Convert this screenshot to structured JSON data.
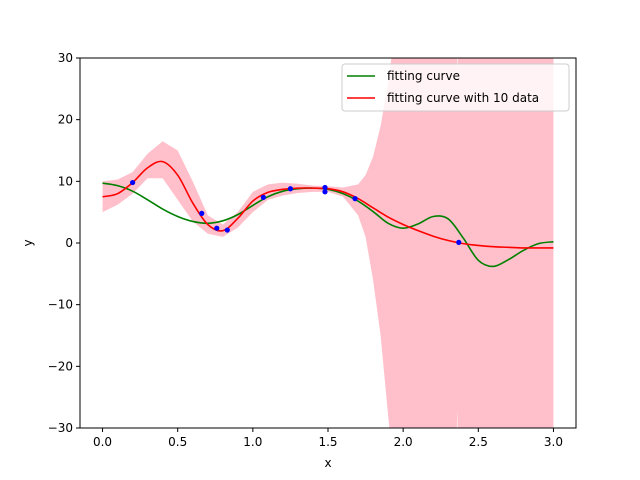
{
  "chart_data": {
    "type": "line",
    "xlabel": "x",
    "ylabel": "y",
    "xlim": [
      -0.15,
      3.15
    ],
    "ylim": [
      -30,
      30
    ],
    "xticks": [
      0.0,
      0.5,
      1.0,
      1.5,
      2.0,
      2.5,
      3.0
    ],
    "xtick_labels": [
      "0.0",
      "0.5",
      "1.0",
      "1.5",
      "2.0",
      "2.5",
      "3.0"
    ],
    "yticks": [
      -30,
      -20,
      -10,
      0,
      10,
      20,
      30
    ],
    "ytick_labels": [
      "−30",
      "−20",
      "−10",
      "0",
      "10",
      "20",
      "30"
    ],
    "grid": false,
    "legend_position": "top-right",
    "colors": {
      "fitting_curve": "#008000",
      "fitting_curve_10": "#ff0000",
      "band": "#ffc0cb",
      "points": "#0000ff"
    },
    "series": [
      {
        "name": "fitting curve",
        "x": [
          0.0,
          0.1,
          0.2,
          0.3,
          0.4,
          0.5,
          0.6,
          0.7,
          0.8,
          0.9,
          1.0,
          1.1,
          1.2,
          1.3,
          1.4,
          1.5,
          1.6,
          1.7,
          1.8,
          1.9,
          2.0,
          2.1,
          2.2,
          2.3,
          2.4,
          2.5,
          2.6,
          2.7,
          2.8,
          2.9,
          3.0
        ],
        "y": [
          9.7,
          9.3,
          8.4,
          7.0,
          5.5,
          4.3,
          3.5,
          3.2,
          3.6,
          4.6,
          6.1,
          7.5,
          8.4,
          8.8,
          8.9,
          8.7,
          8.0,
          6.8,
          5.1,
          3.2,
          2.4,
          3.1,
          4.3,
          3.9,
          0.8,
          -2.8,
          -3.8,
          -2.7,
          -1.2,
          -0.1,
          0.2
        ]
      },
      {
        "name": "fitting curve with 10 data",
        "x": [
          0.0,
          0.1,
          0.2,
          0.3,
          0.4,
          0.5,
          0.6,
          0.7,
          0.8,
          0.9,
          1.0,
          1.1,
          1.2,
          1.3,
          1.4,
          1.5,
          1.6,
          1.7,
          1.8,
          1.9,
          2.0,
          2.1,
          2.2,
          2.3,
          2.4,
          2.5,
          2.6,
          2.7,
          2.8,
          2.9,
          3.0
        ],
        "y": [
          7.5,
          8.0,
          9.8,
          12.2,
          13.2,
          11.0,
          6.5,
          3.0,
          2.0,
          4.0,
          6.8,
          8.2,
          8.7,
          8.9,
          8.9,
          8.8,
          8.3,
          7.2,
          5.7,
          4.2,
          3.0,
          2.0,
          1.1,
          0.4,
          -0.1,
          -0.4,
          -0.6,
          -0.7,
          -0.8,
          -0.8,
          -0.8
        ]
      }
    ],
    "band": {
      "x": [
        0.0,
        0.1,
        0.2,
        0.3,
        0.4,
        0.5,
        0.6,
        0.7,
        0.8,
        0.9,
        1.0,
        1.1,
        1.2,
        1.3,
        1.4,
        1.5,
        1.6,
        1.7,
        1.75,
        1.8,
        1.85,
        1.9,
        1.95,
        2.0,
        2.05,
        2.1,
        2.2,
        2.3,
        2.35,
        2.36,
        2.37,
        2.38,
        2.4,
        2.5,
        2.6,
        2.7,
        2.8,
        2.9,
        3.0
      ],
      "upper": [
        10.0,
        10.3,
        11.5,
        14.5,
        16.5,
        15.0,
        10.0,
        4.5,
        3.0,
        5.0,
        8.3,
        9.5,
        9.8,
        9.6,
        9.3,
        9.2,
        9.0,
        9.5,
        11.0,
        14.0,
        19.0,
        26.0,
        35.0,
        40.0,
        40.0,
        40.0,
        40.0,
        40.0,
        40.0,
        27.0,
        40.0,
        40.0,
        40.0,
        40.0,
        40.0,
        40.0,
        40.0,
        40.0,
        40.0
      ],
      "lower": [
        5.0,
        6.2,
        8.0,
        10.5,
        10.5,
        7.0,
        3.5,
        1.5,
        1.0,
        2.5,
        5.0,
        7.0,
        7.7,
        8.1,
        8.3,
        8.3,
        7.5,
        4.5,
        1.0,
        -6.0,
        -15.0,
        -28.0,
        -40.0,
        -40.0,
        -40.0,
        -40.0,
        -40.0,
        -40.0,
        -40.0,
        -27.0,
        -40.0,
        -40.0,
        -40.0,
        -40.0,
        -40.0,
        -40.0,
        -40.0,
        -40.0,
        -40.0
      ],
      "end_x": 3.0
    },
    "points": {
      "x": [
        0.2,
        0.66,
        0.76,
        0.83,
        1.07,
        1.25,
        1.48,
        1.48,
        1.68,
        2.37
      ],
      "y": [
        9.8,
        4.8,
        2.4,
        2.1,
        7.4,
        8.8,
        9.0,
        8.3,
        7.2,
        0.1
      ]
    }
  }
}
